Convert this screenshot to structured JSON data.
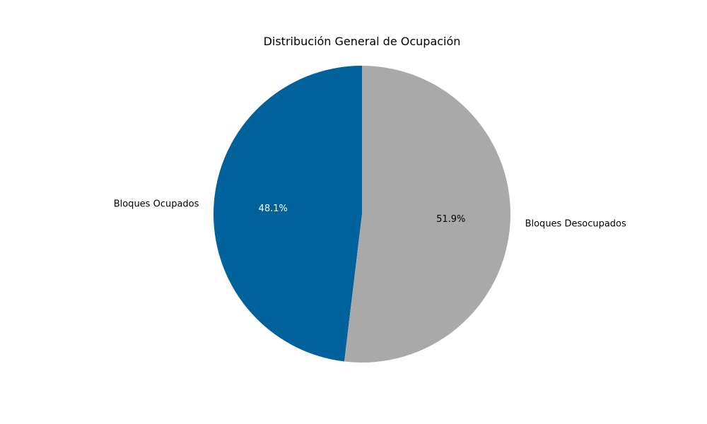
{
  "chart_data": {
    "type": "pie",
    "title": "Distribución General de Ocupación",
    "slices": [
      {
        "label": "Bloques Ocupados",
        "value": 48.1,
        "pct_label": "48.1%",
        "color": "#00629B",
        "pct_text_color": "#ffffff"
      },
      {
        "label": "Bloques Desocupados",
        "value": 51.9,
        "pct_label": "51.9%",
        "color": "#A9A9A9",
        "pct_text_color": "#000000"
      }
    ],
    "start_angle_deg": 90,
    "direction": "counterclockwise",
    "legend": "none"
  }
}
